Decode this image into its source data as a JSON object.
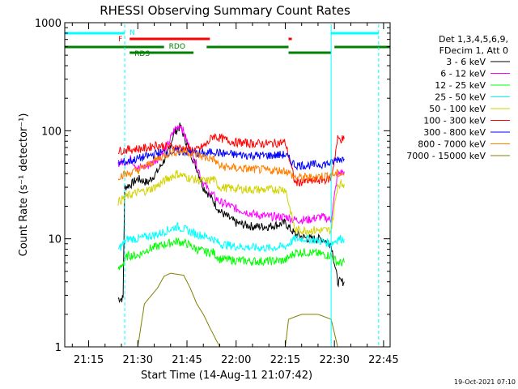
{
  "chart_data": {
    "type": "line",
    "title": "RHESSI Observing Summary Count Rates",
    "xlabel": "Start Time (14-Aug-11 21:07:42)",
    "ylabel": "Count Rate (s⁻¹ detector⁻¹)",
    "y_scale": "log",
    "ylim": [
      1,
      1000
    ],
    "xlim": [
      "21:07:42",
      "22:47:00"
    ],
    "x_tick_labels": [
      "21:15",
      "21:30",
      "21:45",
      "22:00",
      "22:15",
      "22:30",
      "22:45"
    ],
    "y_tick_labels": [
      "1",
      "10",
      "100",
      "1000"
    ],
    "grid": false,
    "legend_position": "right",
    "legend_header": [
      "Det 1,3,4,5,6,9,",
      "FDecim 1, Att 0"
    ],
    "timestamp": "19-Oct-2021 07:10",
    "flag_labels": {
      "night": "N",
      "flare": "F",
      "saa": "RDO",
      "rds": "RDS"
    },
    "flags": {
      "night_cyan": [
        [
          "21:07:42",
          "21:26:00"
        ],
        [
          "22:29:00",
          "22:43:30"
        ]
      ],
      "flare_red": [
        [
          "21:27:30",
          "21:52:00"
        ],
        [
          "22:16:00",
          "22:17:00"
        ]
      ],
      "rdo_green": [
        [
          "21:07:42",
          "21:38:00"
        ],
        [
          "21:51:00",
          "22:16:00"
        ],
        [
          "22:30:00",
          "22:47:00"
        ]
      ],
      "rds_green": [
        [
          "21:27:30",
          "21:47:00"
        ],
        [
          "22:16:00",
          "22:29:00"
        ]
      ]
    },
    "vertical_markers_cyan": [
      "21:07:42",
      "21:26:00",
      "22:29:00",
      "22:43:30"
    ],
    "series": [
      {
        "name": "3 - 6 keV",
        "color": "#000000",
        "points": [
          [
            "21:24:00",
            2.8
          ],
          [
            "21:25:30",
            2.8
          ],
          [
            "21:26:00",
            30
          ],
          [
            "21:28:00",
            32
          ],
          [
            "21:30:00",
            36
          ],
          [
            "21:33:00",
            33
          ],
          [
            "21:36:00",
            42
          ],
          [
            "21:39:00",
            60
          ],
          [
            "21:41:00",
            95
          ],
          [
            "21:43:00",
            110
          ],
          [
            "21:45:00",
            75
          ],
          [
            "21:48:00",
            45
          ],
          [
            "21:50:00",
            30
          ],
          [
            "21:52:00",
            25
          ],
          [
            "21:55:00",
            18
          ],
          [
            "22:00:00",
            14
          ],
          [
            "22:05:00",
            13
          ],
          [
            "22:10:00",
            13
          ],
          [
            "22:15:00",
            14
          ],
          [
            "22:18:00",
            11
          ],
          [
            "22:22:00",
            10
          ],
          [
            "22:26:00",
            10
          ],
          [
            "22:29:00",
            9
          ],
          [
            "22:31:00",
            4
          ],
          [
            "22:33:00",
            4
          ]
        ]
      },
      {
        "name": "6 - 12 keV",
        "color": "#ff00ff",
        "points": [
          [
            "21:24:00",
            50
          ],
          [
            "21:26:00",
            52
          ],
          [
            "21:28:00",
            55
          ],
          [
            "21:30:00",
            45
          ],
          [
            "21:33:00",
            47
          ],
          [
            "21:36:00",
            55
          ],
          [
            "21:39:00",
            72
          ],
          [
            "21:41:00",
            100
          ],
          [
            "21:43:00",
            115
          ],
          [
            "21:45:00",
            80
          ],
          [
            "21:48:00",
            48
          ],
          [
            "21:50:00",
            33
          ],
          [
            "21:52:00",
            27
          ],
          [
            "21:55:00",
            22
          ],
          [
            "22:00:00",
            19
          ],
          [
            "22:05:00",
            17
          ],
          [
            "22:10:00",
            16
          ],
          [
            "22:15:00",
            16
          ],
          [
            "22:18:00",
            15
          ],
          [
            "22:22:00",
            15
          ],
          [
            "22:26:00",
            16
          ],
          [
            "22:29:00",
            15
          ],
          [
            "22:31:00",
            40
          ],
          [
            "22:33:00",
            42
          ]
        ]
      },
      {
        "name": "12 - 25 keV",
        "color": "#00ff00",
        "points": [
          [
            "21:24:00",
            5
          ],
          [
            "21:25:30",
            6
          ],
          [
            "21:27:00",
            7
          ],
          [
            "21:30:00",
            7
          ],
          [
            "21:33:00",
            8
          ],
          [
            "21:36:00",
            8.5
          ],
          [
            "21:39:00",
            9
          ],
          [
            "21:42:00",
            9.5
          ],
          [
            "21:45:00",
            9
          ],
          [
            "21:48:00",
            8
          ],
          [
            "21:51:00",
            7.5
          ],
          [
            "21:53:00",
            7.5
          ],
          [
            "21:55:00",
            6.5
          ],
          [
            "22:00:00",
            6.3
          ],
          [
            "22:05:00",
            6.2
          ],
          [
            "22:10:00",
            6.2
          ],
          [
            "22:15:00",
            6.3
          ],
          [
            "22:18:00",
            7.5
          ],
          [
            "22:22:00",
            7.5
          ],
          [
            "22:26:00",
            7.2
          ],
          [
            "22:29:00",
            7
          ],
          [
            "22:31:00",
            6
          ],
          [
            "22:33:00",
            6
          ]
        ]
      },
      {
        "name": "25 - 50 keV",
        "color": "#00ffff",
        "points": [
          [
            "21:24:00",
            8
          ],
          [
            "21:27:00",
            10
          ],
          [
            "21:30:00",
            10
          ],
          [
            "21:33:00",
            10.5
          ],
          [
            "21:36:00",
            11
          ],
          [
            "21:39:00",
            12
          ],
          [
            "21:42:00",
            13
          ],
          [
            "21:45:00",
            12
          ],
          [
            "21:48:00",
            11
          ],
          [
            "21:51:00",
            10.5
          ],
          [
            "21:53:00",
            10
          ],
          [
            "21:55:00",
            9
          ],
          [
            "22:00:00",
            8.5
          ],
          [
            "22:05:00",
            8.3
          ],
          [
            "22:10:00",
            8.2
          ],
          [
            "22:15:00",
            8.5
          ],
          [
            "22:18:00",
            10
          ],
          [
            "22:22:00",
            10
          ],
          [
            "22:26:00",
            9.5
          ],
          [
            "22:29:00",
            9
          ],
          [
            "22:31:00",
            10
          ],
          [
            "22:33:00",
            10
          ]
        ]
      },
      {
        "name": "50 - 100 keV",
        "color": "#d2d200",
        "points": [
          [
            "21:24:00",
            22
          ],
          [
            "21:27:00",
            25
          ],
          [
            "21:30:00",
            27
          ],
          [
            "21:33:00",
            28
          ],
          [
            "21:36:00",
            31
          ],
          [
            "21:39:00",
            36
          ],
          [
            "21:42:00",
            40
          ],
          [
            "21:45:00",
            37
          ],
          [
            "21:48:00",
            35
          ],
          [
            "21:51:00",
            34
          ],
          [
            "21:53:00",
            36
          ],
          [
            "21:55:00",
            30
          ],
          [
            "22:00:00",
            29
          ],
          [
            "22:05:00",
            28.5
          ],
          [
            "22:10:00",
            28.5
          ],
          [
            "22:15:00",
            29
          ],
          [
            "22:18:00",
            12
          ],
          [
            "22:22:00",
            12
          ],
          [
            "22:26:00",
            12
          ],
          [
            "22:29:00",
            12
          ],
          [
            "22:31:00",
            32
          ],
          [
            "22:33:00",
            32
          ]
        ]
      },
      {
        "name": "100 - 300 keV",
        "color": "#ff0000",
        "points": [
          [
            "21:24:00",
            65
          ],
          [
            "21:27:00",
            67
          ],
          [
            "21:30:00",
            68
          ],
          [
            "21:33:00",
            69
          ],
          [
            "21:35:00",
            74
          ],
          [
            "21:38:00",
            72
          ],
          [
            "21:42:00",
            70
          ],
          [
            "21:45:00",
            68
          ],
          [
            "21:48:00",
            66
          ],
          [
            "21:51:00",
            75
          ],
          [
            "21:53:00",
            90
          ],
          [
            "21:57:00",
            82
          ],
          [
            "22:00:00",
            78
          ],
          [
            "22:05:00",
            76
          ],
          [
            "22:10:00",
            76
          ],
          [
            "22:15:00",
            78
          ],
          [
            "22:18:00",
            33
          ],
          [
            "22:22:00",
            34
          ],
          [
            "22:26:00",
            35
          ],
          [
            "22:29:00",
            36
          ],
          [
            "22:31:00",
            84
          ],
          [
            "22:33:00",
            84
          ]
        ]
      },
      {
        "name": "300 - 800 keV",
        "color": "#0000ff",
        "points": [
          [
            "21:24:00",
            50
          ],
          [
            "21:27:00",
            52
          ],
          [
            "21:30:00",
            55
          ],
          [
            "21:33:00",
            58
          ],
          [
            "21:36:00",
            62
          ],
          [
            "21:40:00",
            64
          ],
          [
            "21:44:00",
            64
          ],
          [
            "21:48:00",
            62
          ],
          [
            "21:51:00",
            61
          ],
          [
            "21:53:00",
            65
          ],
          [
            "21:55:00",
            62
          ],
          [
            "22:00:00",
            60
          ],
          [
            "22:05:00",
            59
          ],
          [
            "22:10:00",
            59
          ],
          [
            "22:15:00",
            60
          ],
          [
            "22:18:00",
            48
          ],
          [
            "22:22:00",
            48
          ],
          [
            "22:26:00",
            49
          ],
          [
            "22:29:00",
            50
          ],
          [
            "22:31:00",
            55
          ],
          [
            "22:33:00",
            55
          ]
        ]
      },
      {
        "name": "800 - 7000 keV",
        "color": "#ff8000",
        "points": [
          [
            "21:24:00",
            38
          ],
          [
            "21:27:00",
            40
          ],
          [
            "21:30:00",
            43
          ],
          [
            "21:33:00",
            48
          ],
          [
            "21:36:00",
            55
          ],
          [
            "21:40:00",
            63
          ],
          [
            "21:44:00",
            65
          ],
          [
            "21:48:00",
            60
          ],
          [
            "21:51:00",
            56
          ],
          [
            "21:53:00",
            55
          ],
          [
            "21:55:00",
            47
          ],
          [
            "22:00:00",
            45
          ],
          [
            "22:05:00",
            44
          ],
          [
            "22:10:00",
            43
          ],
          [
            "22:15:00",
            43
          ],
          [
            "22:18:00",
            37
          ],
          [
            "22:22:00",
            37
          ],
          [
            "22:26:00",
            38
          ],
          [
            "22:29:00",
            39
          ],
          [
            "22:31:00",
            40
          ],
          [
            "22:33:00",
            40
          ]
        ]
      },
      {
        "name": "7000 - 15000 keV",
        "color": "#808000",
        "points": [
          [
            "21:24:00",
            1.0
          ],
          [
            "21:30:00",
            1.0
          ],
          [
            "21:32:00",
            2.5
          ],
          [
            "21:36:00",
            3.5
          ],
          [
            "21:38:00",
            4.5
          ],
          [
            "21:40:00",
            4.8
          ],
          [
            "21:44:00",
            4.6
          ],
          [
            "21:46:00",
            3.5
          ],
          [
            "21:48:00",
            2.5
          ],
          [
            "21:50:00",
            2.0
          ],
          [
            "21:52:00",
            1.5
          ],
          [
            "21:55:00",
            1.0
          ],
          [
            "22:15:00",
            1.0
          ],
          [
            "22:16:00",
            1.8
          ],
          [
            "22:20:00",
            2.0
          ],
          [
            "22:25:00",
            2.0
          ],
          [
            "22:29:00",
            1.8
          ],
          [
            "22:31:00",
            1.0
          ]
        ]
      }
    ]
  }
}
